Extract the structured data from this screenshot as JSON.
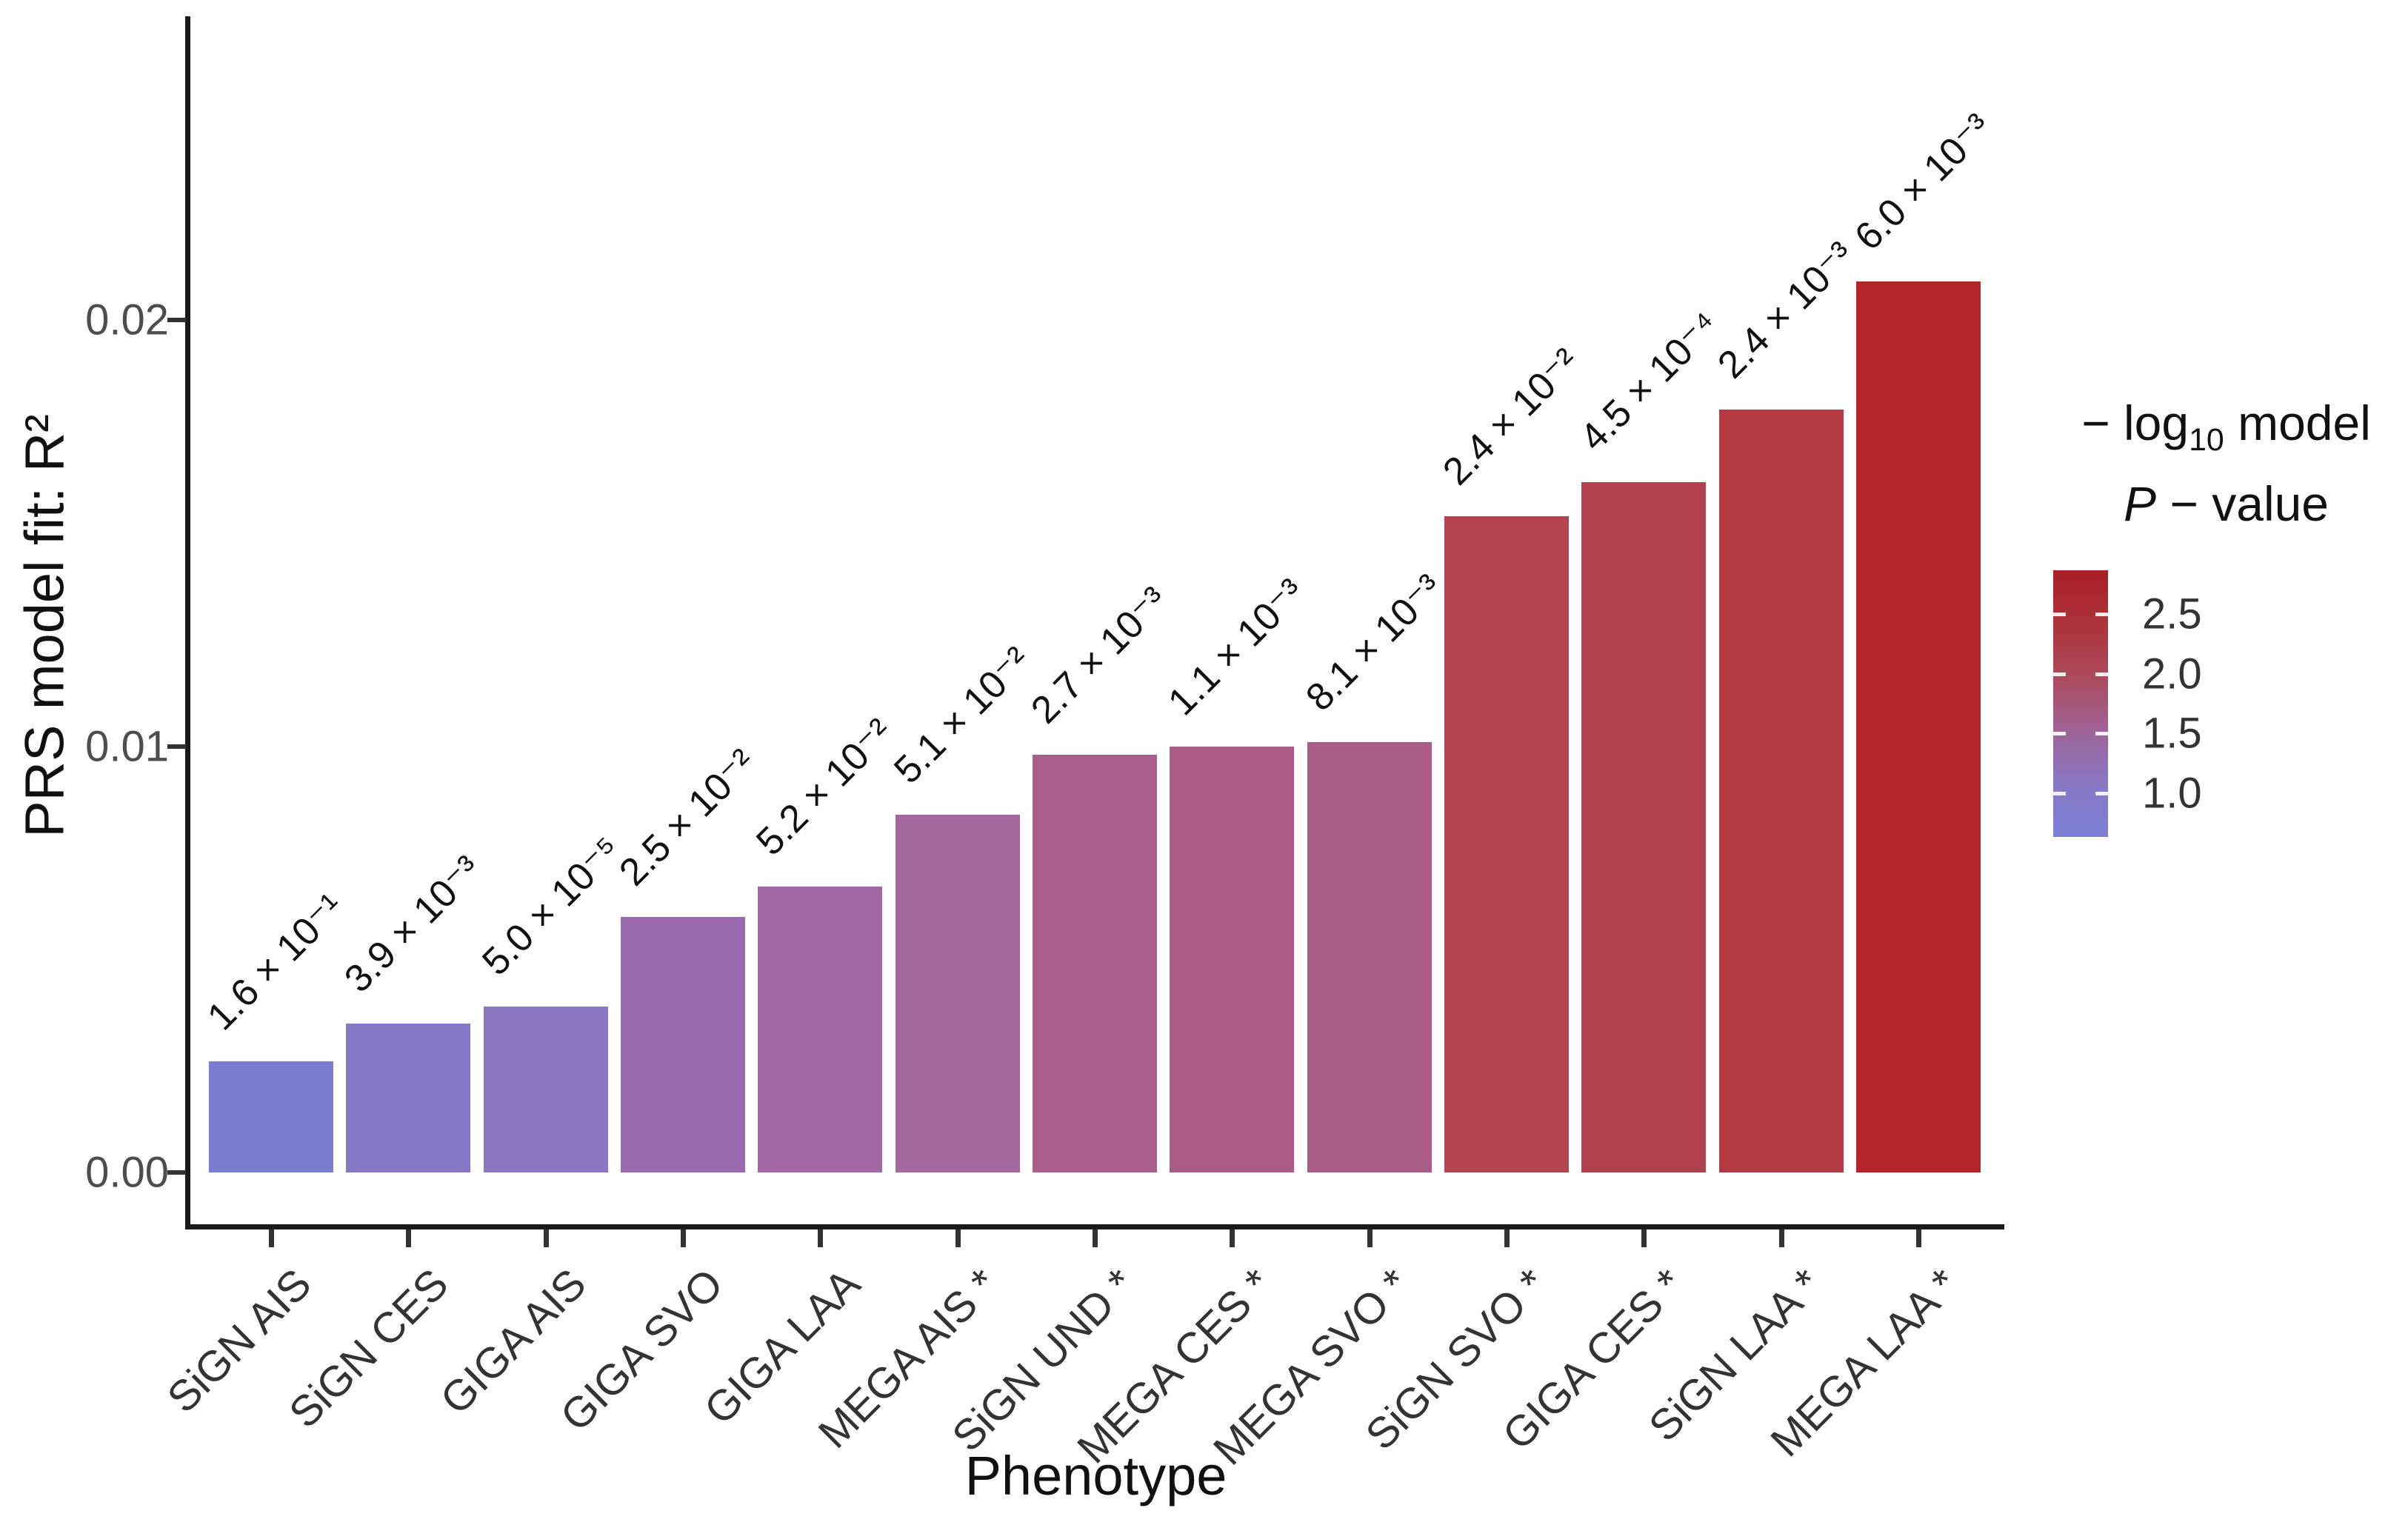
{
  "chart_data": {
    "type": "bar",
    "title": "",
    "xlabel": "Phenotype",
    "ylabel": "PRS model fit:  R²",
    "yticks": [
      "0.00",
      "0.01",
      "0.02"
    ],
    "ytick_values": [
      0,
      0.01,
      0.02
    ],
    "ylim": [
      0,
      0.0235
    ],
    "grid": false,
    "legend_position": "right",
    "categories": [
      "SiGN AIS",
      "SiGN CES",
      "GIGA AIS",
      "GIGA SVO",
      "GIGA LAA",
      "MEGA AIS *",
      "SiGN UND *",
      "MEGA CES *",
      "MEGA SVO *",
      "SiGN SVO *",
      "GIGA CES *",
      "SiGN LAA *",
      "MEGA LAA *"
    ],
    "values": [
      0.0026,
      0.0035,
      0.0039,
      0.006,
      0.0067,
      0.0084,
      0.0098,
      0.01,
      0.0101,
      0.0154,
      0.0162,
      0.0179,
      0.0209
    ],
    "bar_labels": [
      "1.6 × 10⁻¹",
      "3.9 × 10⁻³",
      "5.0 × 10⁻⁵",
      "2.5 × 10⁻²",
      "5.2 × 10⁻²",
      "5.1 × 10⁻²",
      "2.7 × 10⁻³",
      "1.1 × 10⁻³",
      "8.1 × 10⁻³",
      "2.4 × 10⁻²",
      "4.5 × 10⁻⁴",
      "2.4 × 10⁻³",
      "6.0 × 10⁻³"
    ],
    "bar_colors": [
      "#7a7ccd",
      "#8678c6",
      "#8a76c2",
      "#9b69ad",
      "#a067a4",
      "#a2679c",
      "#aa5e8b",
      "#ab5c85",
      "#aa5d87",
      "#b44450",
      "#b1424d",
      "#b43942",
      "#b2262c"
    ],
    "legend": {
      "title_prefix": "− log",
      "title_sub": "10",
      "title_suffix": " model",
      "title_line2_italic": "P",
      "title_line2_rest": " − value",
      "tick_labels": [
        "2.5",
        "2.0",
        "1.5",
        "1.0"
      ],
      "gradient_stops": [
        "#a91f26",
        "#ac323b",
        "#ad4a5c",
        "#9f6397",
        "#8878c4",
        "#7b80d6"
      ]
    }
  }
}
